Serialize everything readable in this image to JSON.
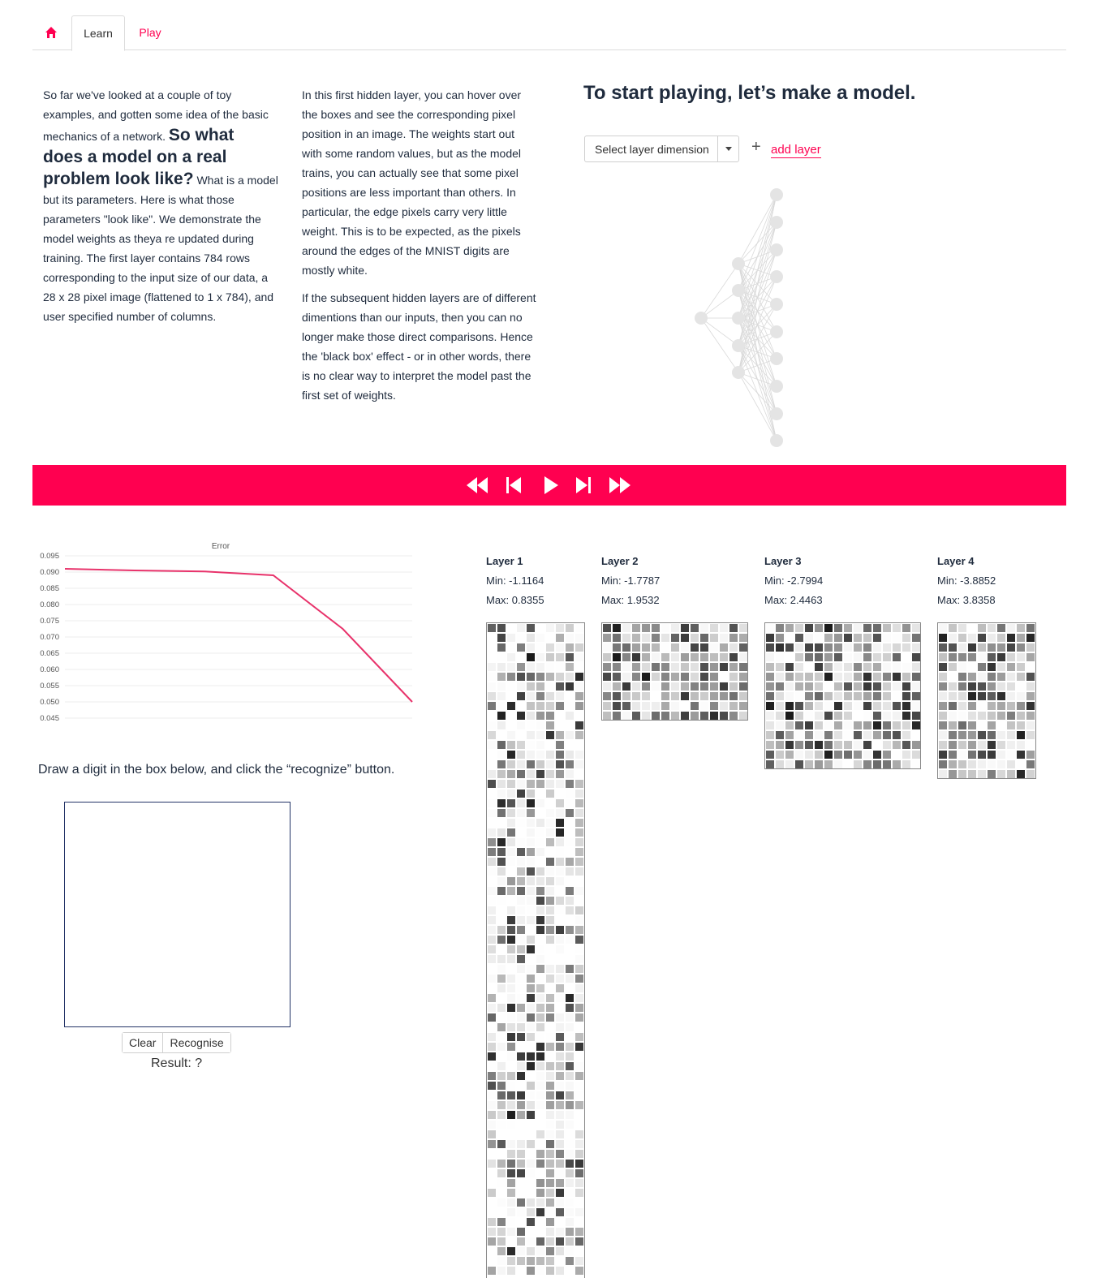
{
  "tabs": {
    "home_icon": "home-icon",
    "learn": "Learn",
    "play": "Play"
  },
  "col1": {
    "part1": "So far we've looked at a couple of toy examples, and gotten some idea of the basic mechanics of a network.",
    "big": "So what does a model on a real problem look like?",
    "part2": "What is a model but its parameters. Here is what those parameters \"look like\". We demonstrate the model weights as theya re updated during training. The first layer contains 784 rows corresponding to the input size of our data, a 28 x 28 pixel image (flattened to 1 x 784), and user specified number of columns."
  },
  "col2": {
    "p1": "In this first hidden layer, you can hover over the boxes and see the corresponding pixel position in an image. The weights start out with some random values, but as the model trains, you can actually see that some pixel positions are less important than others. In particular, the edge pixels carry very little weight. This is to be expected, as the pixels around the edges of the MNIST digits are mostly white.",
    "p2": "If the subsequent hidden layers are of different dimentions than our inputs, then you can no longer make those direct comparisons. Hence the 'black box' effect - or in other words, there is no clear way to interpret the model past the first set of weights."
  },
  "model": {
    "title": "To start playing, let’s make a model.",
    "select_label": "Select layer dimension",
    "add_layer": "add layer"
  },
  "controls": [
    "fast-backward-icon",
    "step-backward-icon",
    "play-icon",
    "step-forward-icon",
    "fast-forward-icon"
  ],
  "chart_data": {
    "type": "line",
    "title": "Error",
    "xlabel": "",
    "ylabel": "",
    "ylim": [
      0.045,
      0.095
    ],
    "yticks": [
      "0.095",
      "0.090",
      "0.085",
      "0.080",
      "0.075",
      "0.070",
      "0.065",
      "0.060",
      "0.055",
      "0.050",
      "0.045"
    ],
    "grid": true,
    "series": [
      {
        "color": "#e8336b",
        "x": [
          0,
          1,
          2,
          3,
          4,
          5
        ],
        "values": [
          0.091,
          0.0905,
          0.0902,
          0.089,
          0.0725,
          0.05
        ]
      }
    ]
  },
  "draw": {
    "instruction": "Draw a digit in the box below, and click the “recognize” button.",
    "clear": "Clear",
    "recognise": "Recognise",
    "result": "Result: ?"
  },
  "layers": [
    {
      "name": "Layer 1",
      "min": "Min: -1.1164",
      "max": "Max: 0.8355"
    },
    {
      "name": "Layer 2",
      "min": "Min: -1.7787",
      "max": "Max: 1.9532"
    },
    {
      "name": "Layer 3",
      "min": "Min: -2.7994",
      "max": "Max: 2.4463"
    },
    {
      "name": "Layer 4",
      "min": "Min: -3.8852",
      "max": "Max: 3.8358"
    }
  ]
}
